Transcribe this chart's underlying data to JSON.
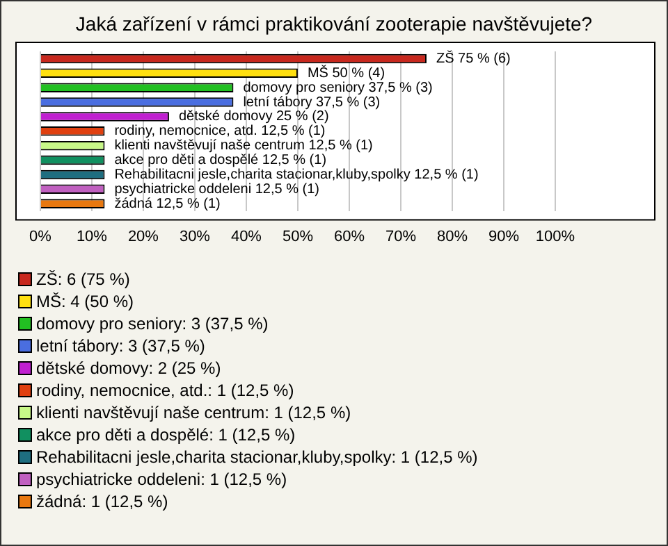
{
  "chart_data": {
    "type": "bar",
    "orientation": "horizontal",
    "stacked": true,
    "title": "Jaká zařízení v rámci praktikování zooterapie navštěvujete?",
    "categories": [
      null,
      null,
      null,
      null,
      null,
      null,
      null,
      null,
      null,
      null,
      null
    ],
    "xlim": [
      0,
      120
    ],
    "xticks": [
      {
        "value": 0,
        "label": "0%"
      },
      {
        "value": 10,
        "label": "10%"
      },
      {
        "value": 20,
        "label": "20%"
      },
      {
        "value": 30,
        "label": "30%"
      },
      {
        "value": 40,
        "label": "40%"
      },
      {
        "value": 50,
        "label": "50%"
      },
      {
        "value": 60,
        "label": "60%"
      },
      {
        "value": 70,
        "label": "70%"
      },
      {
        "value": 80,
        "label": "80%"
      },
      {
        "value": 90,
        "label": "90%"
      },
      {
        "value": 100,
        "label": "100%"
      }
    ],
    "grid": "x",
    "tick_labels": "x",
    "legend": "bottom",
    "series": [
      {
        "name": "ZŠ: 6 (75 %)",
        "color": "#c8281e",
        "values": [
          75,
          null,
          null,
          null,
          null,
          null,
          null,
          null,
          null,
          null,
          null
        ],
        "value_labels": [
          "ZŠ 75 % (6)",
          null,
          null,
          null,
          null,
          null,
          null,
          null,
          null,
          null,
          null
        ]
      },
      {
        "name": "MŠ: 4 (50 %)",
        "color": "#ffe010",
        "values": [
          null,
          50,
          null,
          null,
          null,
          null,
          null,
          null,
          null,
          null,
          null
        ],
        "value_labels": [
          null,
          "MŠ 50 % (4)",
          null,
          null,
          null,
          null,
          null,
          null,
          null,
          null,
          null
        ]
      },
      {
        "name": "domovy pro seniory: 3 (37,5 %)",
        "color": "#22c022",
        "values": [
          null,
          null,
          37.5,
          null,
          null,
          null,
          null,
          null,
          null,
          null,
          null
        ],
        "value_labels": [
          null,
          null,
          "domovy pro seniory 37,5 % (3)",
          null,
          null,
          null,
          null,
          null,
          null,
          null,
          null
        ]
      },
      {
        "name": "letní tábory: 3 (37,5 %)",
        "color": "#4a6ee0",
        "values": [
          null,
          null,
          null,
          37.5,
          null,
          null,
          null,
          null,
          null,
          null,
          null
        ],
        "value_labels": [
          null,
          null,
          null,
          "letní tábory 37,5 % (3)",
          null,
          null,
          null,
          null,
          null,
          null,
          null
        ]
      },
      {
        "name": "dětské domovy: 2 (25 %)",
        "color": "#c020d0",
        "values": [
          null,
          null,
          null,
          null,
          25,
          null,
          null,
          null,
          null,
          null,
          null
        ],
        "value_labels": [
          null,
          null,
          null,
          null,
          "dětské domovy 25 % (2)",
          null,
          null,
          null,
          null,
          null,
          null
        ]
      },
      {
        "name": "rodiny, nemocnice, atd.: 1 (12,5 %)",
        "color": "#e04010",
        "values": [
          null,
          null,
          null,
          null,
          null,
          12.5,
          null,
          null,
          null,
          null,
          null
        ],
        "value_labels": [
          null,
          null,
          null,
          null,
          null,
          "rodiny, nemocnice, atd. 12,5 % (1)",
          null,
          null,
          null,
          null,
          null
        ]
      },
      {
        "name": "klienti navštěvují naše centrum: 1 (12,5 %)",
        "color": "#c8f888",
        "values": [
          null,
          null,
          null,
          null,
          null,
          null,
          12.5,
          null,
          null,
          null,
          null
        ],
        "value_labels": [
          null,
          null,
          null,
          null,
          null,
          null,
          "klienti navštěvují naše centrum 12,5 % (1)",
          null,
          null,
          null,
          null
        ]
      },
      {
        "name": "akce pro děti a dospělé: 1 (12,5 %)",
        "color": "#119060",
        "values": [
          null,
          null,
          null,
          null,
          null,
          null,
          null,
          12.5,
          null,
          null,
          null
        ],
        "value_labels": [
          null,
          null,
          null,
          null,
          null,
          null,
          null,
          "akce pro děti a dospělé 12,5 % (1)",
          null,
          null,
          null
        ]
      },
      {
        "name": "Rehabilitacni jesle,charita stacionar,kluby,spolky: 1 (12,5 %)",
        "color": "#1e6e80",
        "values": [
          null,
          null,
          null,
          null,
          null,
          null,
          null,
          null,
          12.5,
          null,
          null
        ],
        "value_labels": [
          null,
          null,
          null,
          null,
          null,
          null,
          null,
          null,
          "Rehabilitacni jesle,charita stacionar,kluby,spolky 12,5 % (1)",
          null,
          null
        ]
      },
      {
        "name": "psychiatricke oddeleni: 1 (12,5 %)",
        "color": "#c060c0",
        "values": [
          null,
          null,
          null,
          null,
          null,
          null,
          null,
          null,
          null,
          12.5,
          null
        ],
        "value_labels": [
          null,
          null,
          null,
          null,
          null,
          null,
          null,
          null,
          null,
          "psychiatricke oddeleni 12,5 % (1)",
          null
        ]
      },
      {
        "name": "žádná: 1 (12,5 %)",
        "color": "#e87810",
        "values": [
          null,
          null,
          null,
          null,
          null,
          null,
          null,
          null,
          null,
          null,
          12.5
        ],
        "value_labels": [
          null,
          null,
          null,
          null,
          null,
          null,
          null,
          null,
          null,
          null,
          "žádná 12,5 % (1)"
        ]
      }
    ]
  }
}
